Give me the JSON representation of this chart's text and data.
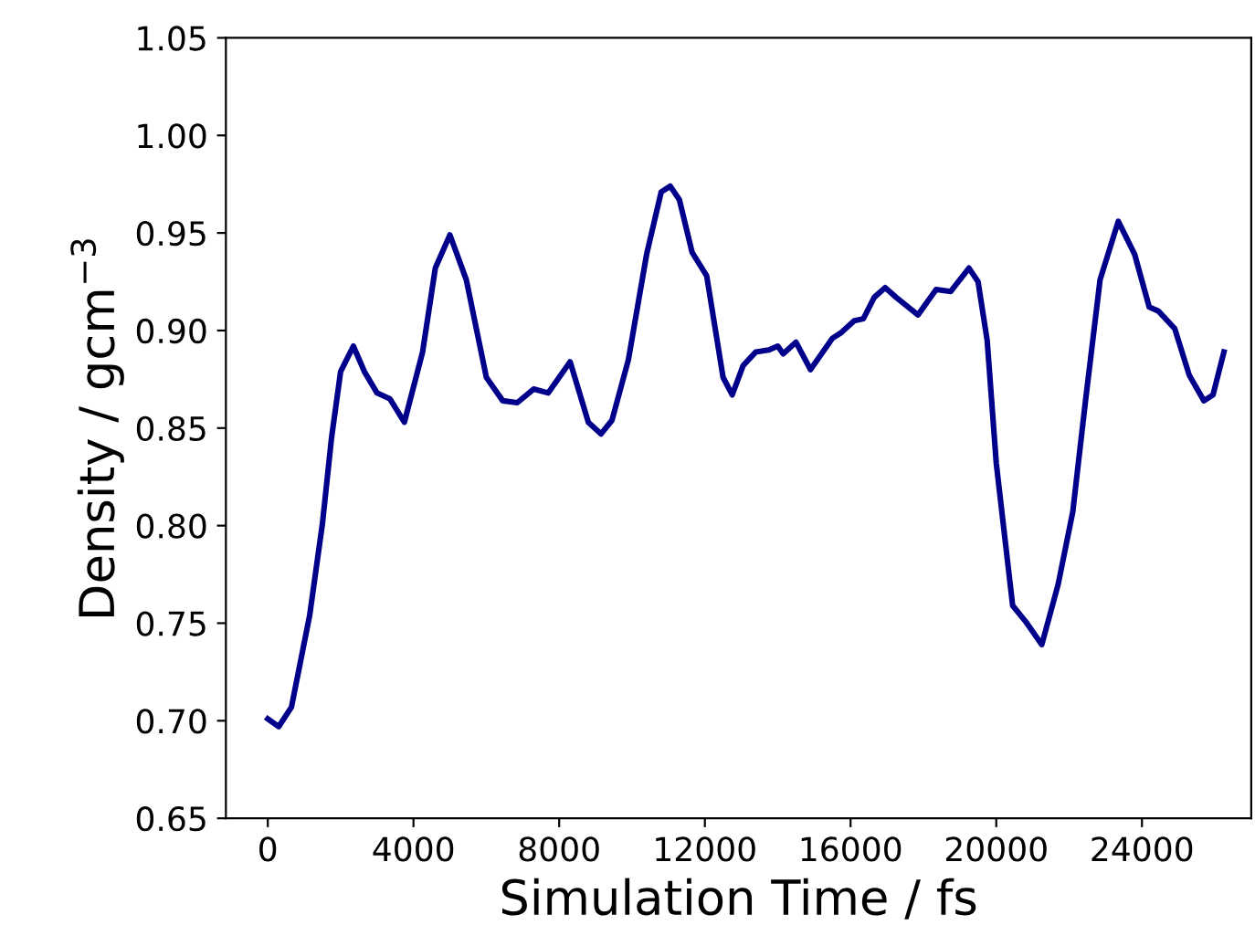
{
  "chart_data": {
    "type": "line",
    "xlabel": "Simulation Time / fs",
    "ylabel": "Density / gcm$^{−3}$",
    "xlim": [
      -1150,
      27000
    ],
    "ylim": [
      0.65,
      1.05
    ],
    "xticks": [
      0,
      4000,
      8000,
      12000,
      16000,
      20000,
      24000
    ],
    "yticks": [
      {
        "value": 0.65,
        "label": "0.65"
      },
      {
        "value": 0.7,
        "label": "0.70"
      },
      {
        "value": 0.75,
        "label": "0.75"
      },
      {
        "value": 0.8,
        "label": "0.80"
      },
      {
        "value": 0.85,
        "label": "0.85"
      },
      {
        "value": 0.9,
        "label": "0.90"
      },
      {
        "value": 0.95,
        "label": "0.95"
      },
      {
        "value": 1.0,
        "label": "1.00"
      },
      {
        "value": 1.05,
        "label": "1.05"
      }
    ],
    "grid": false,
    "marker": "none",
    "line_style": "solid",
    "series": [
      {
        "color": "#00008b",
        "x": [
          0,
          300,
          650,
          1150,
          1500,
          1750,
          2000,
          2350,
          2650,
          3000,
          3350,
          3750,
          4250,
          4600,
          5000,
          5450,
          6000,
          6450,
          6850,
          7300,
          7700,
          8300,
          8800,
          9150,
          9450,
          9900,
          10400,
          10800,
          11050,
          11300,
          11650,
          12050,
          12500,
          12750,
          13050,
          13400,
          13750,
          14000,
          14150,
          14500,
          14900,
          15500,
          15750,
          16100,
          16350,
          16650,
          16950,
          17250,
          17850,
          18350,
          18750,
          19250,
          19500,
          19750,
          20000,
          20450,
          20800,
          21250,
          21700,
          22100,
          22450,
          22850,
          23350,
          23800,
          24200,
          24450,
          24900,
          25300,
          25700,
          25950,
          26250
        ],
        "values": [
          0.701,
          0.697,
          0.707,
          0.754,
          0.801,
          0.845,
          0.879,
          0.892,
          0.879,
          0.868,
          0.865,
          0.853,
          0.889,
          0.932,
          0.949,
          0.926,
          0.876,
          0.864,
          0.863,
          0.87,
          0.868,
          0.884,
          0.853,
          0.847,
          0.854,
          0.885,
          0.939,
          0.971,
          0.974,
          0.967,
          0.94,
          0.928,
          0.876,
          0.867,
          0.882,
          0.889,
          0.89,
          0.892,
          0.888,
          0.894,
          0.88,
          0.896,
          0.899,
          0.905,
          0.906,
          0.917,
          0.922,
          0.917,
          0.908,
          0.921,
          0.92,
          0.932,
          0.925,
          0.895,
          0.832,
          0.759,
          0.751,
          0.739,
          0.77,
          0.807,
          0.864,
          0.926,
          0.956,
          0.939,
          0.912,
          0.91,
          0.901,
          0.877,
          0.864,
          0.867,
          0.889
        ]
      }
    ]
  }
}
